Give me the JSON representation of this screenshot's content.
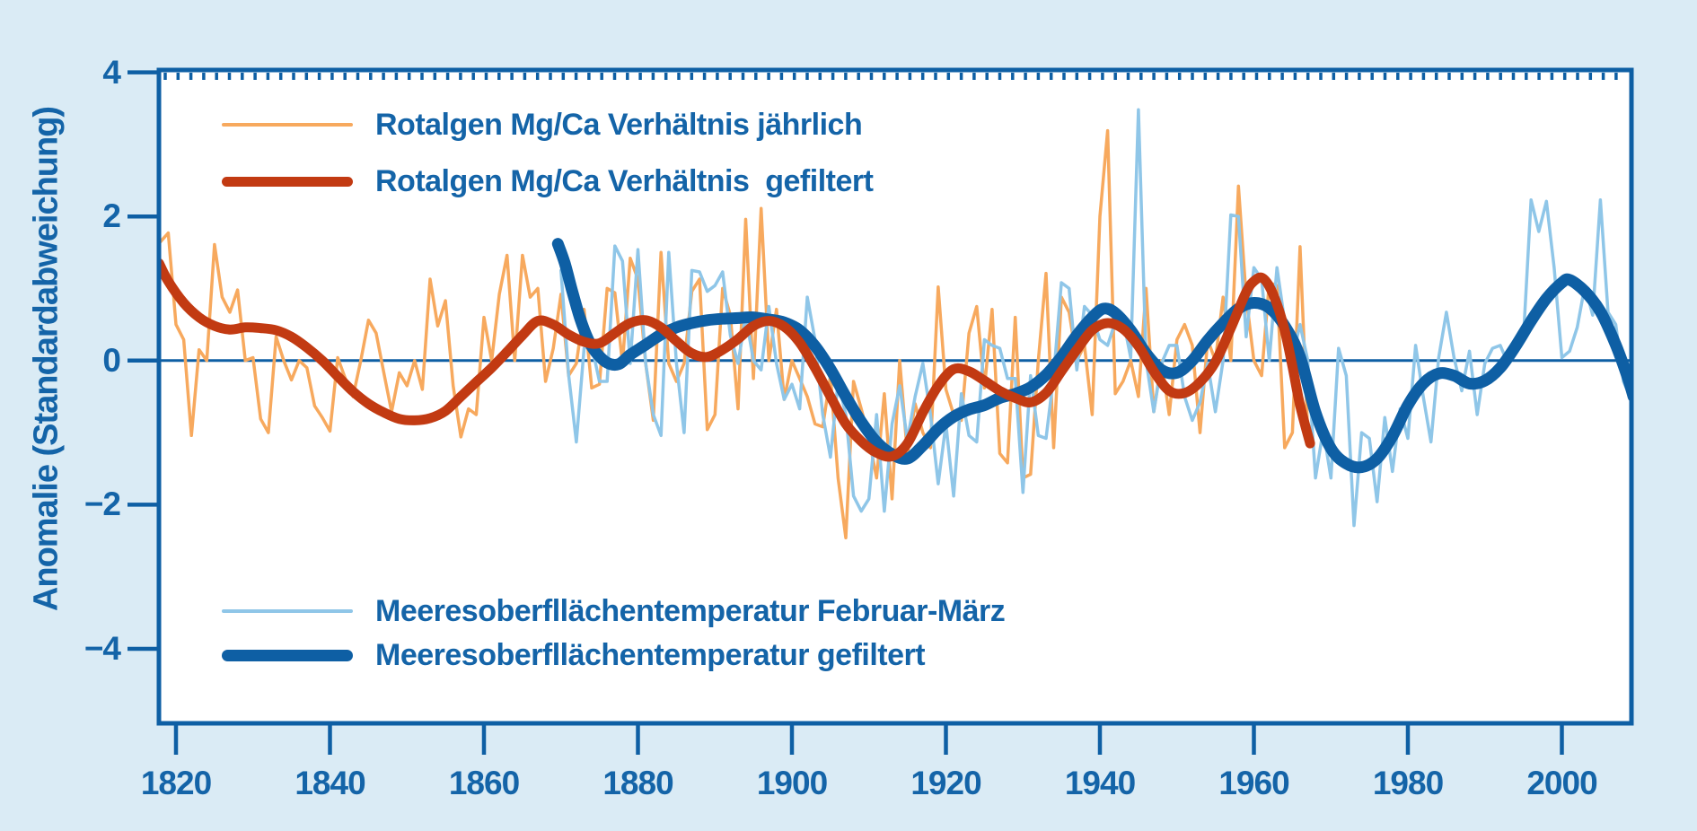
{
  "figure": {
    "background": "#DAEBF5",
    "plot_background": "#FFFFFF",
    "frame_color": "#0E5FA4",
    "text_color": "#1464A8"
  },
  "y_axis": {
    "label": "Anomalie (Standardabweichung)",
    "tick_labels": [
      "4",
      "2",
      "0",
      "−2",
      "−4"
    ],
    "tick_values": [
      4,
      2,
      0,
      -2,
      -4
    ]
  },
  "x_axis": {
    "tick_labels": [
      "1820",
      "1840",
      "1860",
      "1880",
      "1900",
      "1920",
      "1940",
      "1960",
      "1980",
      "2000"
    ],
    "tick_values": [
      1820,
      1840,
      1860,
      1880,
      1900,
      1920,
      1940,
      1960,
      1980,
      2000
    ]
  },
  "legend": {
    "items": [
      {
        "label": "Rotalgen Mg/Ca Verhältnis jährlich",
        "color": "#F7A95E",
        "thickness": 4
      },
      {
        "label": "Rotalgen Mg/Ca Verhältnis  gefiltert",
        "color": "#C23A12",
        "thickness": 11
      },
      {
        "label": "Meeresoberfllächentemperatur Februar-März",
        "color": "#8FC6E8",
        "thickness": 4
      },
      {
        "label": "Meeresoberfllächentemperatur gefiltert",
        "color": "#0E5FA4",
        "thickness": 13
      }
    ]
  },
  "chart_data": {
    "type": "line",
    "title": "",
    "xlabel": "",
    "ylabel": "Anomalie (Standardabweichung)",
    "xlim": [
      1817.8,
      2009.3
    ],
    "ylim": [
      -5.05,
      4.05
    ],
    "grid": false,
    "zero_line": true,
    "legend_position": "inside top-left and inside bottom-left",
    "series": [
      {
        "name": "Rotalgen Mg/Ca Verhältnis jährlich",
        "style": "annual",
        "color": "#F7A95E",
        "width": 3.5,
        "start_year": 1818,
        "values": [
          1.65,
          1.77,
          0.5,
          0.29,
          -1.04,
          0.15,
          0.0,
          1.61,
          0.88,
          0.67,
          0.98,
          0.0,
          0.04,
          -0.81,
          -1.0,
          0.33,
          0.0,
          -0.27,
          0.0,
          -0.1,
          -0.63,
          -0.79,
          -0.98,
          0.04,
          -0.25,
          -0.5,
          0.0,
          0.56,
          0.38,
          -0.17,
          -0.71,
          -0.17,
          -0.35,
          0.0,
          -0.4,
          1.13,
          0.48,
          0.83,
          -0.35,
          -1.06,
          -0.67,
          -0.75,
          0.6,
          0.0,
          0.92,
          1.46,
          0.0,
          1.46,
          0.88,
          1.0,
          -0.29,
          0.17,
          0.92,
          -0.21,
          -0.04,
          0.71,
          -0.38,
          -0.33,
          1.0,
          0.94,
          -0.04,
          1.42,
          1.13,
          -0.04,
          -0.83,
          1.5,
          -0.04,
          -0.29,
          -0.04,
          0.96,
          1.13,
          -0.96,
          -0.75,
          1.0,
          0.63,
          -0.67,
          1.96,
          -0.25,
          2.11,
          0.0,
          0.71,
          -0.54,
          0.0,
          -0.25,
          -0.5,
          -0.88,
          -0.92,
          -0.21,
          -1.63,
          -2.46,
          -0.29,
          -0.67,
          -1.08,
          -1.63,
          -0.46,
          -1.92,
          0.0,
          -1.3,
          -0.6,
          -1.0,
          -1.21,
          1.02,
          -0.4,
          -0.75,
          -0.83,
          0.38,
          0.75,
          -0.38,
          0.71,
          -1.29,
          -1.42,
          0.6,
          -1.63,
          -1.58,
          0.0,
          1.21,
          -1.21,
          0.88,
          0.67,
          0.0,
          0.21,
          -0.75,
          2.0,
          3.19,
          -0.46,
          -0.29,
          0.0,
          -0.5,
          1.0,
          -0.71,
          0.0,
          -0.75,
          0.29,
          0.5,
          0.21,
          -1.0,
          0.29,
          0.0,
          0.88,
          0.0,
          2.42,
          0.88,
          0.0,
          -0.21,
          1.08,
          1.04,
          -1.21,
          -1.0,
          1.58,
          -1.0
        ]
      },
      {
        "name": "Meeresoberfllächentemperatur Februar-März",
        "style": "annual",
        "color": "#8FC6E8",
        "width": 3.5,
        "start_year": 1870,
        "values": [
          1.25,
          -0.2,
          -1.13,
          0.17,
          0.21,
          -0.29,
          -0.29,
          1.59,
          1.38,
          -0.04,
          1.54,
          -0.04,
          -0.75,
          -1.04,
          1.5,
          -0.04,
          -1.0,
          1.25,
          1.23,
          0.96,
          1.04,
          1.23,
          0.35,
          -0.04,
          0.63,
          0.0,
          -0.13,
          0.75,
          -0.04,
          -0.54,
          -0.33,
          -0.67,
          0.88,
          0.29,
          -0.75,
          -1.34,
          -0.29,
          -0.75,
          -1.88,
          -2.09,
          -1.92,
          -0.75,
          -2.09,
          -0.88,
          -0.35,
          -1.1,
          -0.5,
          -0.04,
          -0.75,
          -1.71,
          -0.88,
          -1.88,
          -0.46,
          -1.04,
          -1.13,
          0.29,
          0.21,
          0.17,
          -0.25,
          -0.25,
          -1.83,
          -0.21,
          -1.04,
          -1.08,
          -0.21,
          1.08,
          1.0,
          -0.13,
          0.75,
          0.63,
          0.29,
          0.21,
          0.54,
          0.58,
          0.04,
          3.48,
          0.0,
          -0.71,
          -0.04,
          0.21,
          0.21,
          -0.5,
          -0.83,
          -0.58,
          -0.04,
          -0.71,
          0.0,
          2.02,
          2.0,
          0.33,
          1.29,
          1.13,
          0.0,
          1.29,
          0.54,
          0.04,
          0.5,
          0.0,
          -1.63,
          -0.96,
          -1.63,
          0.17,
          -0.21,
          -2.29,
          -1.0,
          -1.08,
          -1.96,
          -0.79,
          -1.54,
          -0.67,
          -1.08,
          0.21,
          -0.5,
          -1.13,
          0.04,
          0.67,
          0.04,
          -0.42,
          0.13,
          -0.75,
          -0.04,
          0.17,
          0.21,
          -0.04,
          0.29,
          0.29,
          2.23,
          1.79,
          2.21,
          1.29,
          0.04,
          0.13,
          0.46,
          1.04,
          0.63,
          2.23,
          0.67,
          0.5,
          -0.29,
          -0.54
        ]
      },
      {
        "name": "Meeresoberfllächentemperatur gefiltert",
        "style": "filtered",
        "color": "#0E5FA4",
        "width": 13,
        "points": [
          [
            1869.6,
            1.62
          ],
          [
            1870.5,
            1.35
          ],
          [
            1871.5,
            0.95
          ],
          [
            1872.5,
            0.58
          ],
          [
            1873.5,
            0.3
          ],
          [
            1874.5,
            0.12
          ],
          [
            1876,
            -0.03
          ],
          [
            1877.5,
            -0.05
          ],
          [
            1879,
            0.08
          ],
          [
            1881,
            0.22
          ],
          [
            1883,
            0.36
          ],
          [
            1885,
            0.46
          ],
          [
            1887,
            0.52
          ],
          [
            1889,
            0.56
          ],
          [
            1891,
            0.58
          ],
          [
            1893,
            0.59
          ],
          [
            1895,
            0.6
          ],
          [
            1897,
            0.57
          ],
          [
            1899,
            0.53
          ],
          [
            1901,
            0.42
          ],
          [
            1903,
            0.2
          ],
          [
            1905,
            -0.12
          ],
          [
            1907,
            -0.5
          ],
          [
            1909,
            -0.85
          ],
          [
            1911,
            -1.13
          ],
          [
            1913,
            -1.3
          ],
          [
            1915,
            -1.36
          ],
          [
            1917,
            -1.18
          ],
          [
            1919,
            -0.95
          ],
          [
            1921,
            -0.78
          ],
          [
            1923,
            -0.68
          ],
          [
            1925,
            -0.62
          ],
          [
            1927,
            -0.52
          ],
          [
            1929,
            -0.46
          ],
          [
            1931,
            -0.37
          ],
          [
            1933,
            -0.2
          ],
          [
            1935,
            0.05
          ],
          [
            1937,
            0.35
          ],
          [
            1939,
            0.6
          ],
          [
            1940.5,
            0.72
          ],
          [
            1942,
            0.66
          ],
          [
            1944,
            0.42
          ],
          [
            1946,
            0.1
          ],
          [
            1948,
            -0.13
          ],
          [
            1950,
            -0.17
          ],
          [
            1952,
            0.0
          ],
          [
            1954,
            0.28
          ],
          [
            1956,
            0.52
          ],
          [
            1958,
            0.72
          ],
          [
            1960,
            0.8
          ],
          [
            1962,
            0.73
          ],
          [
            1964,
            0.48
          ],
          [
            1966,
            0.05
          ],
          [
            1968,
            -0.72
          ],
          [
            1970,
            -1.22
          ],
          [
            1972,
            -1.43
          ],
          [
            1974,
            -1.48
          ],
          [
            1976,
            -1.36
          ],
          [
            1978,
            -1.05
          ],
          [
            1980,
            -0.62
          ],
          [
            1982,
            -0.32
          ],
          [
            1984,
            -0.18
          ],
          [
            1986,
            -0.21
          ],
          [
            1988,
            -0.32
          ],
          [
            1990,
            -0.28
          ],
          [
            1992,
            -0.1
          ],
          [
            1994,
            0.2
          ],
          [
            1996,
            0.55
          ],
          [
            1998,
            0.86
          ],
          [
            2000,
            1.08
          ],
          [
            2001,
            1.12
          ],
          [
            2003,
            0.96
          ],
          [
            2005,
            0.68
          ],
          [
            2007,
            0.22
          ],
          [
            2008.5,
            -0.22
          ],
          [
            2009.3,
            -0.5
          ]
        ]
      },
      {
        "name": "Rotalgen Mg/Ca Verhältnis gefiltert",
        "style": "filtered",
        "color": "#C23A12",
        "width": 11,
        "points": [
          [
            1817.8,
            1.35
          ],
          [
            1819,
            1.1
          ],
          [
            1821,
            0.8
          ],
          [
            1823,
            0.6
          ],
          [
            1825,
            0.48
          ],
          [
            1827,
            0.43
          ],
          [
            1829,
            0.46
          ],
          [
            1831,
            0.45
          ],
          [
            1833,
            0.42
          ],
          [
            1835,
            0.33
          ],
          [
            1837,
            0.18
          ],
          [
            1839,
            0.0
          ],
          [
            1841,
            -0.22
          ],
          [
            1843,
            -0.43
          ],
          [
            1845,
            -0.6
          ],
          [
            1847,
            -0.72
          ],
          [
            1849,
            -0.81
          ],
          [
            1851,
            -0.83
          ],
          [
            1853,
            -0.8
          ],
          [
            1855,
            -0.7
          ],
          [
            1857,
            -0.5
          ],
          [
            1859,
            -0.3
          ],
          [
            1861,
            -0.1
          ],
          [
            1863,
            0.12
          ],
          [
            1865,
            0.35
          ],
          [
            1867,
            0.55
          ],
          [
            1869,
            0.5
          ],
          [
            1871,
            0.36
          ],
          [
            1873,
            0.26
          ],
          [
            1875,
            0.24
          ],
          [
            1877,
            0.38
          ],
          [
            1879,
            0.52
          ],
          [
            1881,
            0.56
          ],
          [
            1883,
            0.46
          ],
          [
            1885,
            0.27
          ],
          [
            1887,
            0.1
          ],
          [
            1889,
            0.05
          ],
          [
            1891,
            0.15
          ],
          [
            1893,
            0.3
          ],
          [
            1895,
            0.48
          ],
          [
            1897,
            0.55
          ],
          [
            1899,
            0.47
          ],
          [
            1901,
            0.25
          ],
          [
            1903,
            -0.1
          ],
          [
            1905,
            -0.5
          ],
          [
            1907,
            -0.88
          ],
          [
            1909,
            -1.12
          ],
          [
            1911,
            -1.28
          ],
          [
            1913,
            -1.33
          ],
          [
            1915,
            -1.15
          ],
          [
            1917,
            -0.72
          ],
          [
            1919,
            -0.35
          ],
          [
            1921,
            -0.12
          ],
          [
            1923,
            -0.15
          ],
          [
            1925,
            -0.28
          ],
          [
            1927,
            -0.42
          ],
          [
            1929,
            -0.52
          ],
          [
            1931,
            -0.58
          ],
          [
            1933,
            -0.45
          ],
          [
            1935,
            -0.15
          ],
          [
            1937,
            0.15
          ],
          [
            1939,
            0.42
          ],
          [
            1941,
            0.52
          ],
          [
            1943,
            0.44
          ],
          [
            1945,
            0.2
          ],
          [
            1947,
            -0.15
          ],
          [
            1949,
            -0.42
          ],
          [
            1951,
            -0.45
          ],
          [
            1953,
            -0.3
          ],
          [
            1955,
            -0.02
          ],
          [
            1957,
            0.45
          ],
          [
            1959,
            0.95
          ],
          [
            1960,
            1.1
          ],
          [
            1961,
            1.15
          ],
          [
            1962,
            1.03
          ],
          [
            1963,
            0.78
          ],
          [
            1964,
            0.42
          ],
          [
            1965,
            -0.08
          ],
          [
            1966,
            -0.62
          ],
          [
            1967.3,
            -1.15
          ]
        ]
      }
    ]
  }
}
